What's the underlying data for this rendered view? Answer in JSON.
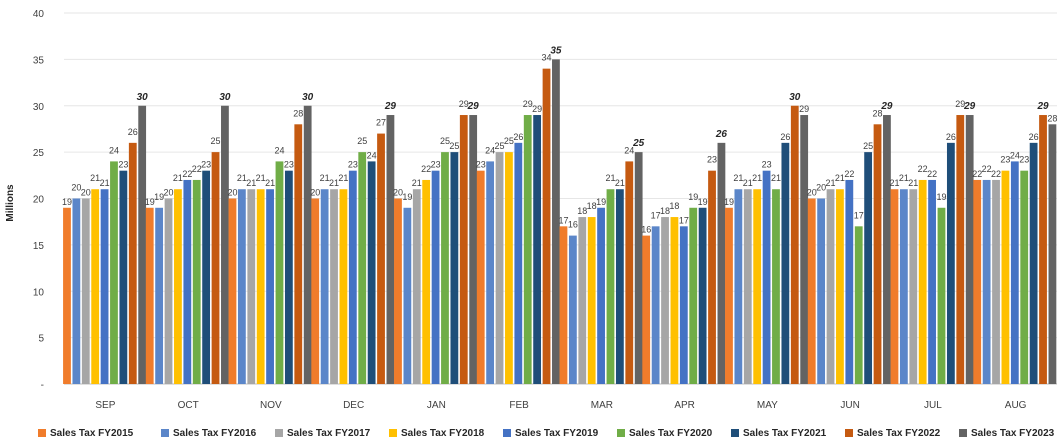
{
  "chart_data": {
    "type": "bar",
    "title": "",
    "xlabel": "",
    "ylabel": "Millions",
    "ylim": [
      0,
      40
    ],
    "yticks": [
      {
        "value": 0,
        "label": "-"
      },
      {
        "value": 5,
        "label": "5"
      },
      {
        "value": 10,
        "label": "10"
      },
      {
        "value": 15,
        "label": "15"
      },
      {
        "value": 20,
        "label": "20"
      },
      {
        "value": 25,
        "label": "25"
      },
      {
        "value": 30,
        "label": "30"
      },
      {
        "value": 35,
        "label": "35"
      },
      {
        "value": 40,
        "label": "40"
      }
    ],
    "grid": true,
    "legend_position": "bottom",
    "categories": [
      "SEP",
      "OCT",
      "NOV",
      "DEC",
      "JAN",
      "FEB",
      "MAR",
      "APR",
      "MAY",
      "JUN",
      "JUL",
      "AUG"
    ],
    "series": [
      {
        "name": "Sales Tax FY2015",
        "color": "#f07c2b",
        "values": [
          19,
          19,
          20,
          20,
          20,
          23,
          17,
          16,
          19,
          20,
          21,
          22
        ]
      },
      {
        "name": "Sales Tax FY2016",
        "color": "#5b86c9",
        "values": [
          20,
          19,
          21,
          21,
          19,
          24,
          16,
          17,
          21,
          20,
          21,
          22
        ]
      },
      {
        "name": "Sales Tax FY2017",
        "color": "#a6a6a6",
        "values": [
          20,
          20,
          21,
          21,
          21,
          25,
          18,
          18,
          21,
          21,
          21,
          22
        ]
      },
      {
        "name": "Sales Tax FY2018",
        "color": "#ffc000",
        "values": [
          21,
          21,
          21,
          21,
          22,
          25,
          18,
          18,
          21,
          21,
          22,
          23
        ]
      },
      {
        "name": "Sales Tax FY2019",
        "color": "#4472c4",
        "values": [
          21,
          22,
          21,
          23,
          23,
          26,
          19,
          17,
          23,
          22,
          22,
          24
        ]
      },
      {
        "name": "Sales Tax FY2020",
        "color": "#70ad47",
        "values": [
          24,
          22,
          24,
          25,
          25,
          29,
          21,
          19,
          21,
          17,
          19,
          23
        ]
      },
      {
        "name": "Sales Tax FY2021",
        "color": "#1f4e79",
        "values": [
          23,
          23,
          23,
          24,
          25,
          29,
          21,
          19,
          26,
          25,
          26,
          26
        ]
      },
      {
        "name": "Sales Tax FY2022",
        "color": "#c55a11",
        "values": [
          26,
          25,
          28,
          27,
          29,
          34,
          24,
          23,
          30,
          28,
          29,
          29
        ]
      },
      {
        "name": "Sales Tax FY2023",
        "color": "#636363",
        "values": [
          30,
          30,
          30,
          29,
          29,
          35,
          25,
          26,
          29,
          29,
          29,
          28
        ]
      }
    ]
  }
}
